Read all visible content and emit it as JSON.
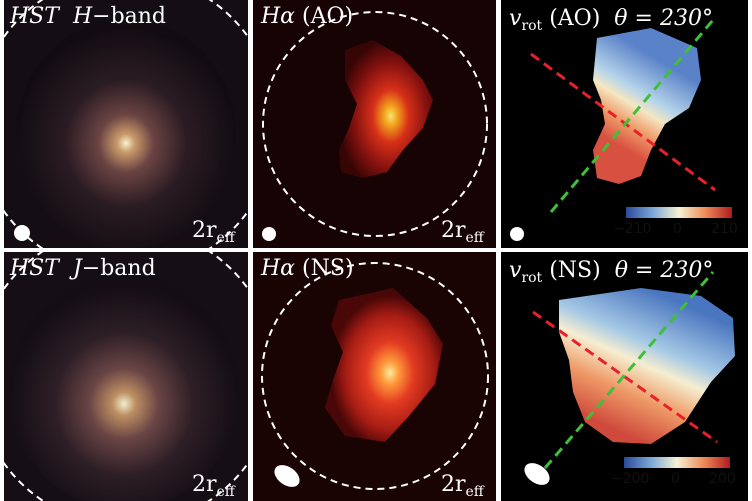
{
  "panels": [
    {
      "id": "p1",
      "title_italic": "HST",
      "title_rest": "H",
      "band": "band",
      "scale_r": "2r",
      "scale_sub": "eff"
    },
    {
      "id": "p2",
      "title_main": "Hα",
      "title_rest": "(AO)",
      "scale_r": "2r",
      "scale_sub": "eff"
    },
    {
      "id": "p3",
      "title_v": "v",
      "title_sub": "rot",
      "title_rest": "(AO)",
      "theta": "θ = 230°",
      "colorbar": {
        "min": "−210",
        "mid": "0",
        "max": "210"
      }
    },
    {
      "id": "p4",
      "title_italic": "HST",
      "title_rest": "J",
      "band": "band",
      "scale_r": "2r",
      "scale_sub": "eff"
    },
    {
      "id": "p5",
      "title_main": "Hα",
      "title_rest": "(NS)",
      "scale_r": "2r",
      "scale_sub": "eff"
    },
    {
      "id": "p6",
      "title_v": "v",
      "title_sub": "rot",
      "title_rest": "(NS)",
      "theta": "θ = 230°",
      "colorbar": {
        "min": "−200",
        "mid": "0",
        "max": "200"
      }
    }
  ],
  "colors": {
    "dash_red": "#e8202a",
    "dash_green": "#3fbf3a",
    "circle": "#ffffff"
  }
}
